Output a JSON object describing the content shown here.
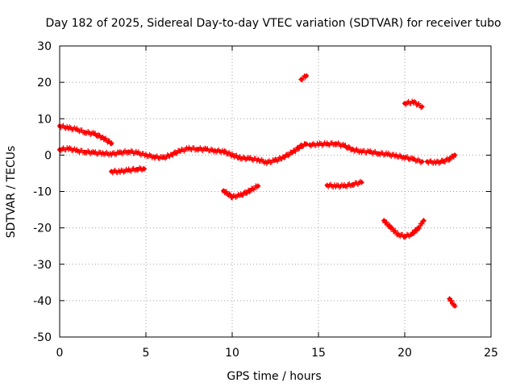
{
  "chart_data": {
    "type": "scatter",
    "title": "Day 182 of 2025, Sidereal Day-to-day VTEC variation (SDTVAR) for receiver tubo",
    "xlabel": "GPS time / hours",
    "ylabel": "SDTVAR / TECUs",
    "xlim": [
      0,
      25
    ],
    "ylim": [
      -50,
      30
    ],
    "xticks": [
      0,
      5,
      10,
      15,
      20,
      25
    ],
    "yticks": [
      -50,
      -40,
      -30,
      -20,
      -10,
      0,
      10,
      20,
      30
    ],
    "xtick_labels": [
      "0",
      "5",
      "10",
      "15",
      "20",
      "25"
    ],
    "ytick_labels": [
      "-50",
      "-40",
      "-30",
      "-20",
      "-10",
      "0",
      "10",
      "20",
      "30"
    ],
    "grid": true,
    "marker": "plus",
    "color": "#ff0000",
    "series": [
      {
        "name": "arc-main",
        "points": [
          [
            0.0,
            1.5
          ],
          [
            0.5,
            1.8
          ],
          [
            1.0,
            1.2
          ],
          [
            1.5,
            0.9
          ],
          [
            2.0,
            0.6
          ],
          [
            2.5,
            0.5
          ],
          [
            3.0,
            0.3
          ],
          [
            3.5,
            0.6
          ],
          [
            4.0,
            1.0
          ],
          [
            4.5,
            0.6
          ],
          [
            5.0,
            0.0
          ],
          [
            5.5,
            -0.5
          ],
          [
            6.0,
            -0.8
          ],
          [
            6.5,
            0.2
          ],
          [
            7.0,
            1.2
          ],
          [
            7.5,
            1.8
          ],
          [
            8.0,
            1.7
          ],
          [
            8.5,
            1.5
          ],
          [
            9.0,
            1.2
          ],
          [
            9.5,
            1.0
          ],
          [
            10.0,
            0.0
          ],
          [
            10.5,
            -0.8
          ],
          [
            11.0,
            -1.0
          ],
          [
            11.5,
            -1.3
          ],
          [
            12.0,
            -2.0
          ],
          [
            12.5,
            -1.5
          ],
          [
            13.0,
            -0.5
          ],
          [
            13.5,
            0.8
          ],
          [
            14.0,
            2.5
          ],
          [
            14.3,
            3.0
          ]
        ]
      },
      {
        "name": "arc-early-high",
        "points": [
          [
            0.0,
            8.0
          ],
          [
            0.5,
            7.5
          ],
          [
            1.0,
            7.0
          ],
          [
            1.5,
            6.3
          ],
          [
            2.0,
            5.8
          ],
          [
            2.5,
            4.8
          ],
          [
            3.0,
            3.2
          ]
        ]
      },
      {
        "name": "arc-early-low",
        "points": [
          [
            3.0,
            -4.5
          ],
          [
            3.5,
            -4.5
          ],
          [
            4.0,
            -4.2
          ],
          [
            4.5,
            -3.8
          ],
          [
            4.9,
            -3.8
          ]
        ]
      },
      {
        "name": "arc-dip-10h",
        "points": [
          [
            9.5,
            -9.8
          ],
          [
            10.0,
            -11.5
          ],
          [
            10.5,
            -11.0
          ],
          [
            11.0,
            -9.8
          ],
          [
            11.5,
            -8.5
          ]
        ]
      },
      {
        "name": "arc-spike-14h",
        "points": [
          [
            14.0,
            20.8
          ],
          [
            14.3,
            21.8
          ]
        ]
      },
      {
        "name": "arc-15-21h",
        "points": [
          [
            14.5,
            2.8
          ],
          [
            15.0,
            3.0
          ],
          [
            15.5,
            3.0
          ],
          [
            16.0,
            3.2
          ],
          [
            16.5,
            2.5
          ],
          [
            17.0,
            1.5
          ],
          [
            17.5,
            1.0
          ],
          [
            18.0,
            0.8
          ],
          [
            18.5,
            0.5
          ],
          [
            19.0,
            0.2
          ],
          [
            19.5,
            -0.2
          ],
          [
            20.0,
            -0.6
          ],
          [
            20.5,
            -1.2
          ],
          [
            21.0,
            -1.8
          ]
        ]
      },
      {
        "name": "arc-16-17h",
        "points": [
          [
            15.5,
            -8.3
          ],
          [
            16.0,
            -8.5
          ],
          [
            16.5,
            -8.5
          ],
          [
            17.0,
            -8.0
          ],
          [
            17.5,
            -7.5
          ]
        ]
      },
      {
        "name": "arc-20h-high",
        "points": [
          [
            20.0,
            14.2
          ],
          [
            20.5,
            14.6
          ],
          [
            21.0,
            13.3
          ]
        ]
      },
      {
        "name": "arc-bowl-20h",
        "points": [
          [
            18.8,
            -18.0
          ],
          [
            19.2,
            -20.0
          ],
          [
            19.6,
            -21.8
          ],
          [
            20.0,
            -22.3
          ],
          [
            20.4,
            -21.8
          ],
          [
            20.8,
            -20.0
          ],
          [
            21.1,
            -18.0
          ]
        ]
      },
      {
        "name": "arc-late",
        "points": [
          [
            21.3,
            -1.8
          ],
          [
            21.8,
            -2.0
          ],
          [
            22.2,
            -1.8
          ],
          [
            22.6,
            -1.0
          ],
          [
            22.9,
            0.0
          ]
        ]
      },
      {
        "name": "arc-late-low",
        "points": [
          [
            22.6,
            -39.5
          ],
          [
            22.9,
            -41.5
          ]
        ]
      }
    ]
  }
}
